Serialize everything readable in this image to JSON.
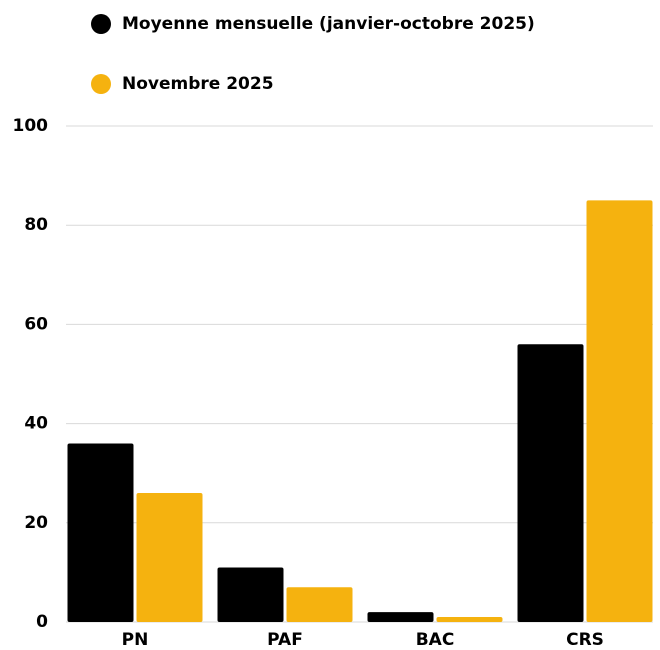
{
  "chart_data": {
    "type": "bar",
    "categories": [
      "PN",
      "PAF",
      "BAC",
      "CRS"
    ],
    "series": [
      {
        "name": "Moyenne mensuelle (janvier-octobre 2025)",
        "color": "#000000",
        "values": [
          36,
          11,
          2,
          56
        ]
      },
      {
        "name": "Novembre 2025",
        "color": "#f5b20f",
        "values": [
          26,
          7,
          1,
          85
        ]
      }
    ],
    "ylim": [
      0,
      100
    ],
    "yticks": [
      0,
      20,
      40,
      60,
      80,
      100
    ],
    "grid": true,
    "legend": "top"
  }
}
